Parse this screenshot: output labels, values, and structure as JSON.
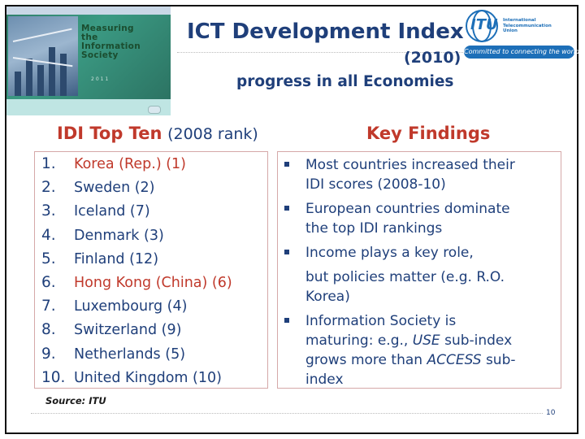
{
  "cover": {
    "title_lines": [
      "Measuring",
      "the",
      "Information",
      "Society"
    ],
    "year": "2011"
  },
  "header": {
    "title": "ICT Development Index",
    "year": "(2010)",
    "subtitle": "progress in all Economies"
  },
  "logo": {
    "acronym": "ITU",
    "org_lines": [
      "International",
      "Telecommunication",
      "Union"
    ],
    "motto": "Committed to connecting the world"
  },
  "left": {
    "heading": "IDI Top Ten",
    "heading_note": "(2008 rank)",
    "items": [
      {
        "num": "1.",
        "text": "Korea (Rep.) (1)",
        "color": "#c0392b"
      },
      {
        "num": "2.",
        "text": "Sweden (2)",
        "color": "#1f3f7a"
      },
      {
        "num": "3.",
        "text": "Iceland (7)",
        "color": "#1f3f7a"
      },
      {
        "num": "4.",
        "text": "Denmark (3)",
        "color": "#1f3f7a"
      },
      {
        "num": "5.",
        "text": "Finland (12)",
        "color": "#1f3f7a"
      },
      {
        "num": "6.",
        "text": "Hong Kong (China) (6)",
        "color": "#c0392b"
      },
      {
        "num": "7.",
        "text": "Luxembourg (4)",
        "color": "#1f3f7a"
      },
      {
        "num": "8.",
        "text": "Switzerland (9)",
        "color": "#1f3f7a"
      },
      {
        "num": "9.",
        "text": "Netherlands (5)",
        "color": "#1f3f7a"
      },
      {
        "num": "10.",
        "text": "United Kingdom (10)",
        "color": "#1f3f7a"
      }
    ]
  },
  "right": {
    "heading": "Key Findings",
    "findings": [
      {
        "lines": [
          "Most countries increased their",
          "IDI scores (2008-10)"
        ]
      },
      {
        "lines": [
          "European countries dominate",
          "the top IDI rankings"
        ]
      },
      {
        "lines": [
          "Income plays a key role,",
          "but policies matter (e.g. R.O.",
          "Korea)"
        ]
      },
      {
        "lines": [
          "Information Society is",
          "maturing: e.g., ",
          "USE",
          " sub-index",
          "grows more than ",
          "ACCESS",
          " sub-",
          "index"
        ]
      }
    ]
  },
  "footer": {
    "source": "Source: ITU",
    "page": "10"
  },
  "colors": {
    "navy": "#1f3f7a",
    "red": "#c0392b",
    "itu_blue": "#1d6fb8"
  }
}
